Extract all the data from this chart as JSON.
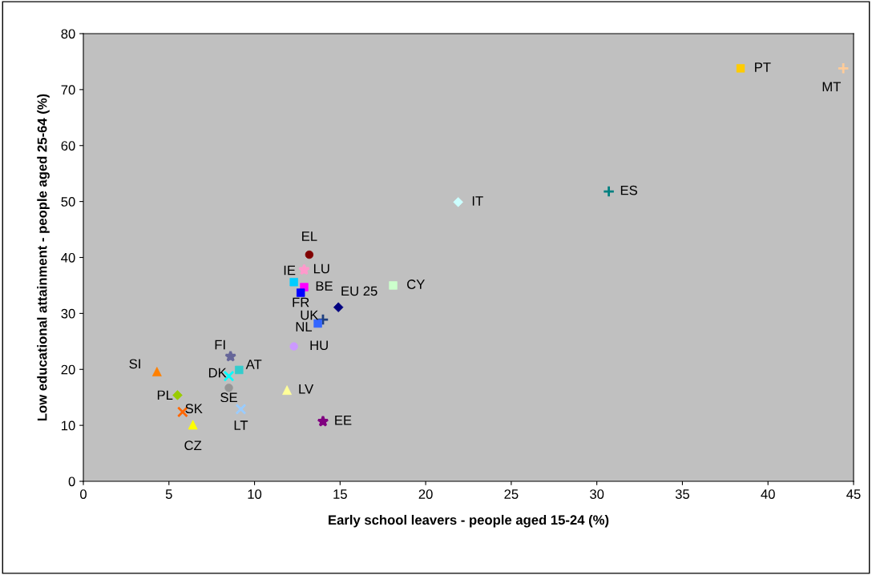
{
  "chart_data": {
    "type": "scatter",
    "xlabel": "Early school leavers - people aged 15-24 (%)",
    "ylabel": "Low educational attainment - people aged 25-64 (%)",
    "xlim": [
      0,
      45
    ],
    "ylim": [
      0,
      80
    ],
    "xticks": [
      0,
      5,
      10,
      15,
      20,
      25,
      30,
      35,
      40,
      45
    ],
    "yticks": [
      0,
      10,
      20,
      30,
      40,
      50,
      60,
      70,
      80
    ],
    "grid": false,
    "series": [
      {
        "name": "EL",
        "color": "#800000",
        "marker": "circle",
        "x": [
          13.2
        ],
        "values": [
          40.5
        ]
      },
      {
        "name": "LU",
        "color": "#ff99cc",
        "marker": "star",
        "x": [
          12.9
        ],
        "values": [
          37.8
        ]
      },
      {
        "name": "IE",
        "color": "#00ccff",
        "marker": "square",
        "x": [
          12.3
        ],
        "values": [
          35.6
        ]
      },
      {
        "name": "BE",
        "color": "#ff00ff",
        "marker": "square",
        "x": [
          12.9
        ],
        "values": [
          34.7
        ]
      },
      {
        "name": "FR",
        "color": "#0000ff",
        "marker": "square",
        "x": [
          12.7
        ],
        "values": [
          33.7
        ]
      },
      {
        "name": "EU 25",
        "color": "#000080",
        "marker": "diamond",
        "x": [
          14.9
        ],
        "values": [
          31.1
        ]
      },
      {
        "name": "UK",
        "color": "#1f3f7f",
        "marker": "plus",
        "x": [
          14.0
        ],
        "values": [
          28.9
        ]
      },
      {
        "name": "NL",
        "color": "#3366ff",
        "marker": "square",
        "x": [
          13.7
        ],
        "values": [
          28.2
        ]
      },
      {
        "name": "HU",
        "color": "#cc99ff",
        "marker": "circle",
        "x": [
          12.3
        ],
        "values": [
          24.1
        ]
      },
      {
        "name": "FI",
        "color": "#666699",
        "marker": "star",
        "x": [
          8.6
        ],
        "values": [
          22.3
        ]
      },
      {
        "name": "AT",
        "color": "#33cccc",
        "marker": "square",
        "x": [
          9.1
        ],
        "values": [
          19.9
        ]
      },
      {
        "name": "DK",
        "color": "#00ffff",
        "marker": "cross",
        "x": [
          8.5
        ],
        "values": [
          18.8
        ]
      },
      {
        "name": "SE",
        "color": "#969696",
        "marker": "circle",
        "x": [
          8.5
        ],
        "values": [
          16.7
        ]
      },
      {
        "name": "LT",
        "color": "#99ccff",
        "marker": "cross",
        "x": [
          9.2
        ],
        "values": [
          12.9
        ]
      },
      {
        "name": "SI",
        "color": "#ff8000",
        "marker": "triangle",
        "x": [
          4.3
        ],
        "values": [
          19.6
        ]
      },
      {
        "name": "PL",
        "color": "#99cc00",
        "marker": "diamond",
        "x": [
          5.5
        ],
        "values": [
          15.4
        ]
      },
      {
        "name": "SK",
        "color": "#ff6600",
        "marker": "cross",
        "x": [
          5.8
        ],
        "values": [
          12.4
        ]
      },
      {
        "name": "CZ",
        "color": "#ffff00",
        "marker": "triangle",
        "x": [
          6.4
        ],
        "values": [
          10.1
        ]
      },
      {
        "name": "LV",
        "color": "#ffff99",
        "marker": "triangle",
        "x": [
          11.9
        ],
        "values": [
          16.3
        ]
      },
      {
        "name": "EE",
        "color": "#800080",
        "marker": "star",
        "x": [
          14.0
        ],
        "values": [
          10.7
        ]
      },
      {
        "name": "CY",
        "color": "#ccffcc",
        "marker": "square",
        "x": [
          18.1
        ],
        "values": [
          35.0
        ]
      },
      {
        "name": "IT",
        "color": "#ccffff",
        "marker": "diamond",
        "x": [
          21.9
        ],
        "values": [
          49.9
        ]
      },
      {
        "name": "ES",
        "color": "#008080",
        "marker": "plus",
        "x": [
          30.7
        ],
        "values": [
          51.8
        ]
      },
      {
        "name": "PT",
        "color": "#ffcc00",
        "marker": "square",
        "x": [
          38.4
        ],
        "values": [
          73.8
        ]
      },
      {
        "name": "MT",
        "color": "#ffcc99",
        "marker": "plus",
        "x": [
          44.4
        ],
        "values": [
          73.8
        ]
      }
    ]
  }
}
